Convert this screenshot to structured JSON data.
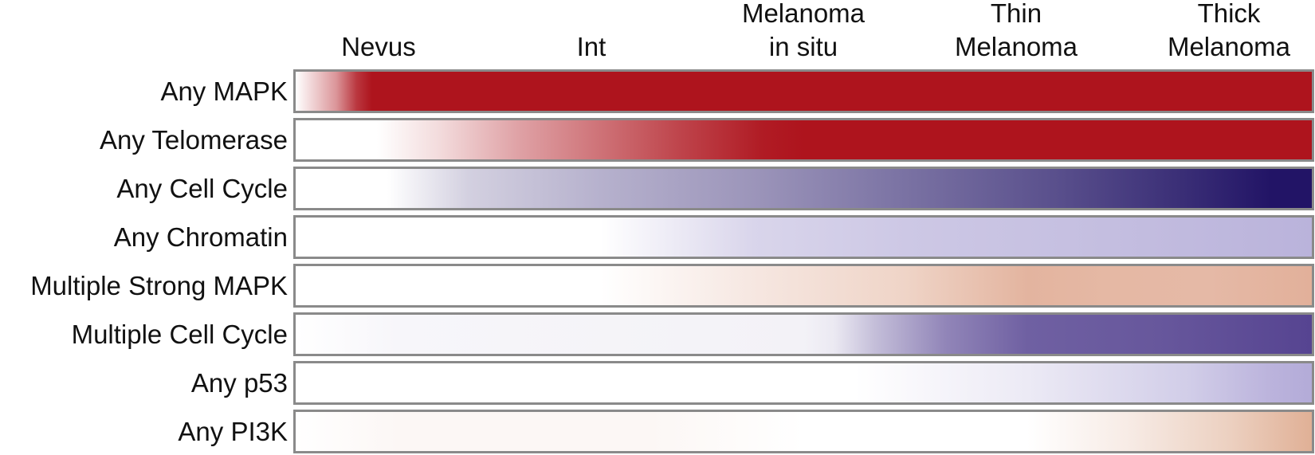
{
  "chart_data": {
    "type": "heatmap",
    "columns": [
      {
        "lines": [
          "Nevus"
        ]
      },
      {
        "lines": [
          "Int"
        ]
      },
      {
        "lines": [
          "Melanoma",
          "in situ"
        ]
      },
      {
        "lines": [
          "Thin",
          "Melanoma"
        ]
      },
      {
        "lines": [
          "Thick",
          "Melanoma"
        ]
      }
    ],
    "rows": [
      {
        "label": "Any MAPK",
        "color": "#ae141d",
        "gradient": [
          [
            0,
            0.0
          ],
          [
            0.04,
            0.45
          ],
          [
            0.06,
            0.85
          ],
          [
            0.075,
            1.0
          ],
          [
            1,
            1.0
          ]
        ]
      },
      {
        "label": "Any Telomerase",
        "color": "#ae141d",
        "gradient": [
          [
            0,
            0.0
          ],
          [
            0.08,
            0.0
          ],
          [
            0.14,
            0.15
          ],
          [
            0.22,
            0.4
          ],
          [
            0.3,
            0.6
          ],
          [
            0.38,
            0.8
          ],
          [
            0.46,
            0.97
          ],
          [
            0.5,
            1.0
          ],
          [
            1,
            1.0
          ]
        ]
      },
      {
        "label": "Any Cell Cycle",
        "color": "#221466",
        "gradient": [
          [
            0,
            0.0
          ],
          [
            0.09,
            0.0
          ],
          [
            0.17,
            0.2
          ],
          [
            0.3,
            0.33
          ],
          [
            0.45,
            0.45
          ],
          [
            0.6,
            0.6
          ],
          [
            0.75,
            0.75
          ],
          [
            0.88,
            0.9
          ],
          [
            0.96,
            1.0
          ],
          [
            1,
            1.0
          ]
        ]
      },
      {
        "label": "Any Chromatin",
        "color": "#bab3db",
        "gradient": [
          [
            0,
            0.0
          ],
          [
            0.3,
            0.0
          ],
          [
            0.45,
            0.55
          ],
          [
            0.6,
            0.72
          ],
          [
            0.8,
            0.85
          ],
          [
            1,
            1.0
          ]
        ]
      },
      {
        "label": "Multiple Strong MAPK",
        "color": "#e2b09a",
        "gradient": [
          [
            0,
            0.0
          ],
          [
            0.3,
            0.0
          ],
          [
            0.45,
            0.3
          ],
          [
            0.6,
            0.55
          ],
          [
            0.72,
            0.95
          ],
          [
            0.8,
            0.9
          ],
          [
            0.9,
            0.88
          ],
          [
            1,
            1.0
          ]
        ]
      },
      {
        "label": "Multiple Cell Cycle",
        "color": "#564491",
        "gradient": [
          [
            0,
            0.0
          ],
          [
            0.1,
            0.05
          ],
          [
            0.5,
            0.07
          ],
          [
            0.53,
            0.12
          ],
          [
            0.57,
            0.35
          ],
          [
            0.64,
            0.65
          ],
          [
            0.72,
            0.85
          ],
          [
            0.85,
            0.9
          ],
          [
            1,
            1.0
          ]
        ]
      },
      {
        "label": "Any p53",
        "color": "#b3abd8",
        "gradient": [
          [
            0,
            0.0
          ],
          [
            0.55,
            0.0
          ],
          [
            0.72,
            0.25
          ],
          [
            0.88,
            0.6
          ],
          [
            0.96,
            0.9
          ],
          [
            1,
            1.0
          ]
        ]
      },
      {
        "label": "Any PI3K",
        "color": "#e0b096",
        "gradient": [
          [
            0,
            0.0
          ],
          [
            0.1,
            0.1
          ],
          [
            0.35,
            0.1
          ],
          [
            0.5,
            0.0
          ],
          [
            0.72,
            0.0
          ],
          [
            0.82,
            0.25
          ],
          [
            0.92,
            0.6
          ],
          [
            1,
            1.0
          ]
        ]
      }
    ]
  }
}
